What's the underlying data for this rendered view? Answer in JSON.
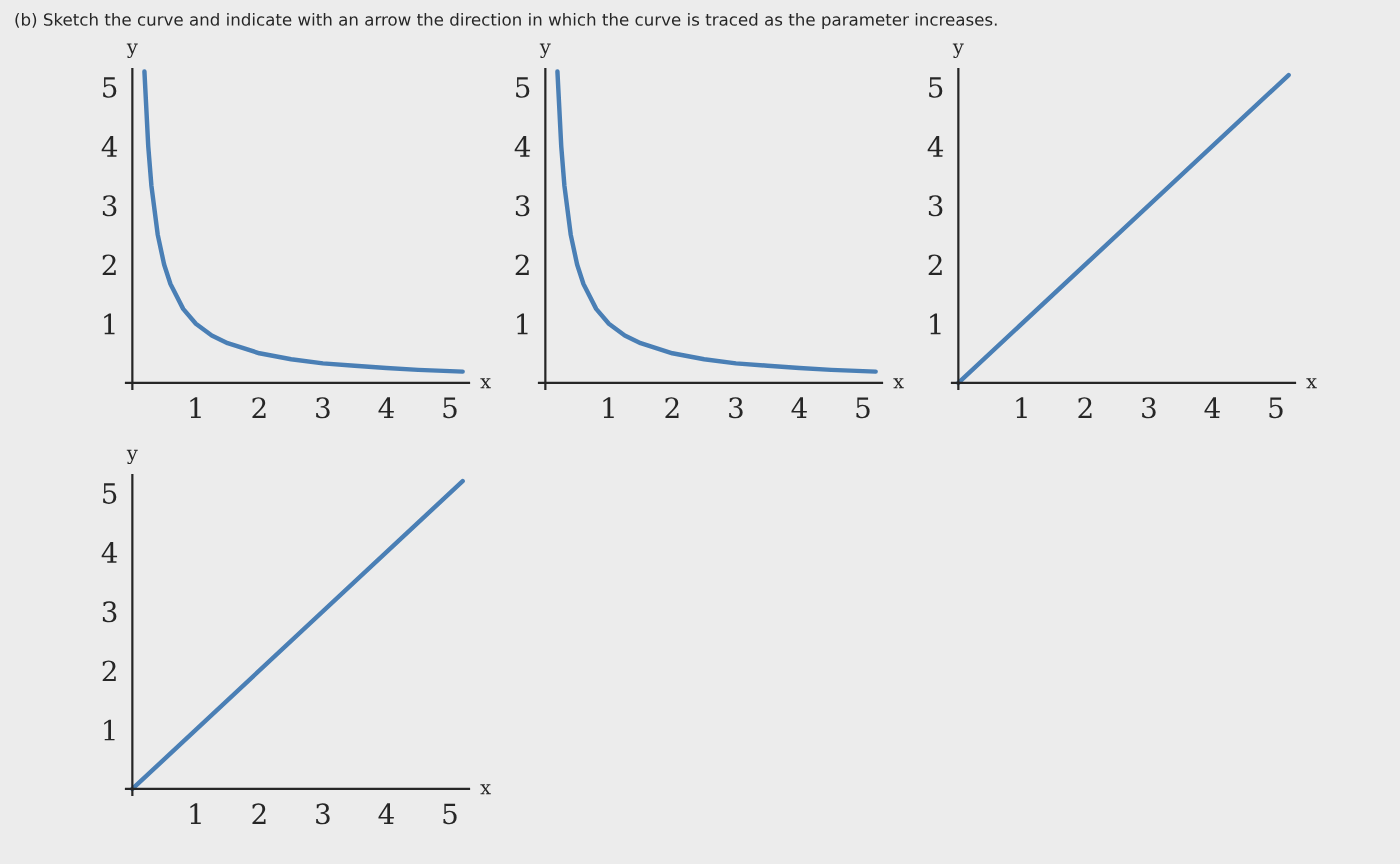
{
  "chart_data": [
    {
      "type": "line",
      "title": "(b) Sketch the curve and indicate with an arrow the direction in which the curve is traced as the parameter increases.",
      "xlabel": "x",
      "ylabel": "y",
      "xlim": [
        -0.1,
        5.3
      ],
      "ylim": [
        -0.1,
        5.3
      ],
      "xticks": [
        1,
        2,
        3,
        4,
        5
      ],
      "yticks": [
        1,
        2,
        3,
        4,
        5
      ],
      "grid": false,
      "series": [
        {
          "color": "#4a7fb5",
          "x": [
            0.19,
            0.25,
            0.3,
            0.4,
            0.5,
            0.6,
            0.8,
            1,
            1.25,
            1.5,
            2,
            2.5,
            3,
            3.5,
            4,
            4.5,
            5.2
          ],
          "values": [
            5.26,
            4,
            3.33,
            2.5,
            2,
            1.67,
            1.25,
            1,
            0.8,
            0.67,
            0.5,
            0.4,
            0.33,
            0.29,
            0.25,
            0.22,
            0.19
          ]
        }
      ]
    },
    {
      "type": "line",
      "xlabel": "x",
      "ylabel": "y",
      "xlim": [
        -0.1,
        5.3
      ],
      "ylim": [
        -0.1,
        5.3
      ],
      "xticks": [
        1,
        2,
        3,
        4,
        5
      ],
      "yticks": [
        1,
        2,
        3,
        4,
        5
      ],
      "grid": false,
      "series": [
        {
          "color": "#4a7fb5",
          "x": [
            0.19,
            0.25,
            0.3,
            0.4,
            0.5,
            0.6,
            0.8,
            1,
            1.25,
            1.5,
            2,
            2.5,
            3,
            3.5,
            4,
            4.5,
            5.2
          ],
          "values": [
            5.26,
            4,
            3.33,
            2.5,
            2,
            1.67,
            1.25,
            1,
            0.8,
            0.67,
            0.5,
            0.4,
            0.33,
            0.29,
            0.25,
            0.22,
            0.19
          ]
        }
      ]
    },
    {
      "type": "line",
      "xlabel": "x",
      "ylabel": "y",
      "xlim": [
        -0.1,
        5.3
      ],
      "ylim": [
        -0.1,
        5.3
      ],
      "xticks": [
        1,
        2,
        3,
        4,
        5
      ],
      "yticks": [
        1,
        2,
        3,
        4,
        5
      ],
      "grid": false,
      "series": [
        {
          "color": "#4a7fb5",
          "x": [
            0,
            5.2
          ],
          "values": [
            0,
            5.2
          ]
        }
      ]
    },
    {
      "type": "line",
      "xlabel": "x",
      "ylabel": "y",
      "xlim": [
        -0.1,
        5.3
      ],
      "ylim": [
        -0.1,
        5.3
      ],
      "xticks": [
        1,
        2,
        3,
        4,
        5
      ],
      "yticks": [
        1,
        2,
        3,
        4,
        5
      ],
      "grid": false,
      "series": [
        {
          "color": "#4a7fb5",
          "x": [
            0,
            5.2
          ],
          "values": [
            0,
            5.2
          ]
        }
      ]
    }
  ]
}
